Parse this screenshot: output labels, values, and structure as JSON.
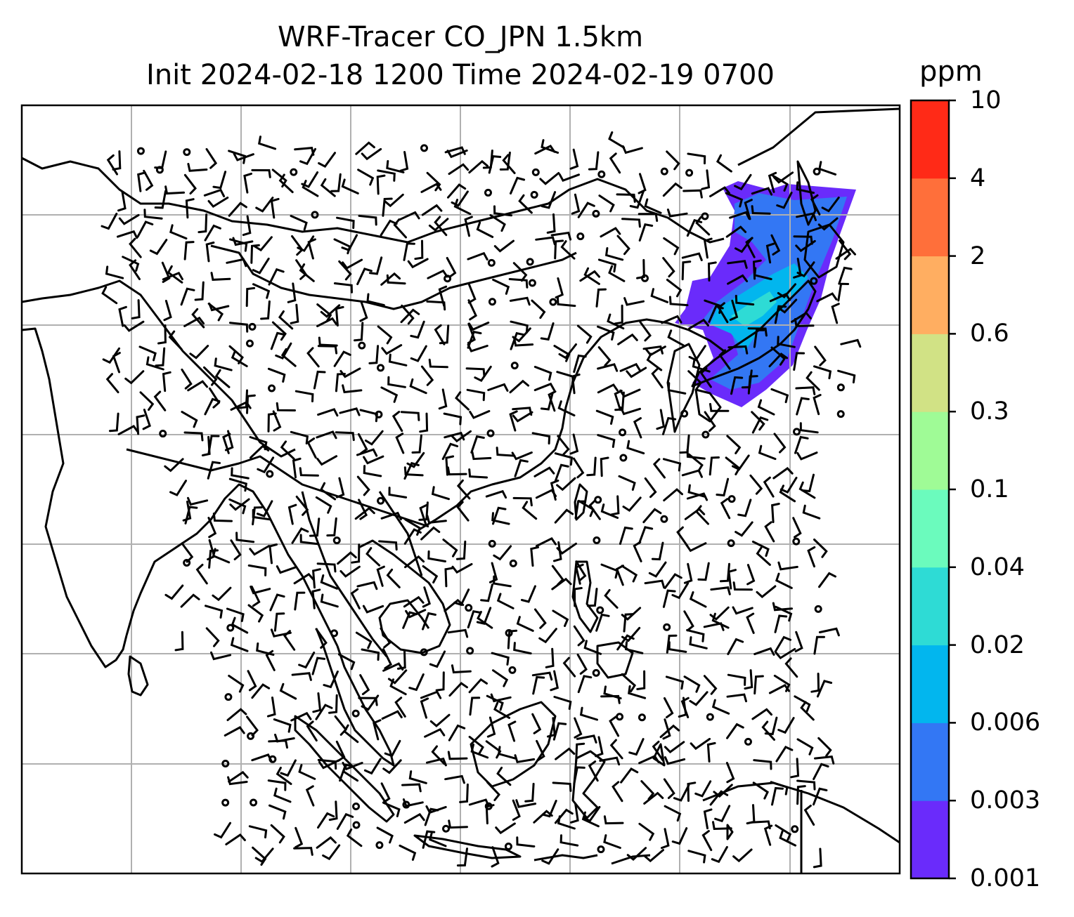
{
  "title": {
    "line1": "WRF-Tracer CO_JPN 1.5km",
    "line2": "Init 2024-02-18 1200 Time 2024-02-19 0700"
  },
  "colorbar": {
    "unit": "ppm",
    "levels": [
      "0.001",
      "0.003",
      "0.006",
      "0.02",
      "0.04",
      "0.1",
      "0.3",
      "0.6",
      "2",
      "4",
      "10"
    ],
    "colors": [
      "#6a2bfb",
      "#3377f4",
      "#02b6ee",
      "#2edbd5",
      "#6bfbbd",
      "#9ffb96",
      "#d1e285",
      "#ffae61",
      "#ff6f3a",
      "#ff2a17"
    ]
  },
  "map": {
    "gridlines": true,
    "layers": [
      "coastlines",
      "country-borders",
      "wind-barbs",
      "co-tracer-plume"
    ]
  }
}
